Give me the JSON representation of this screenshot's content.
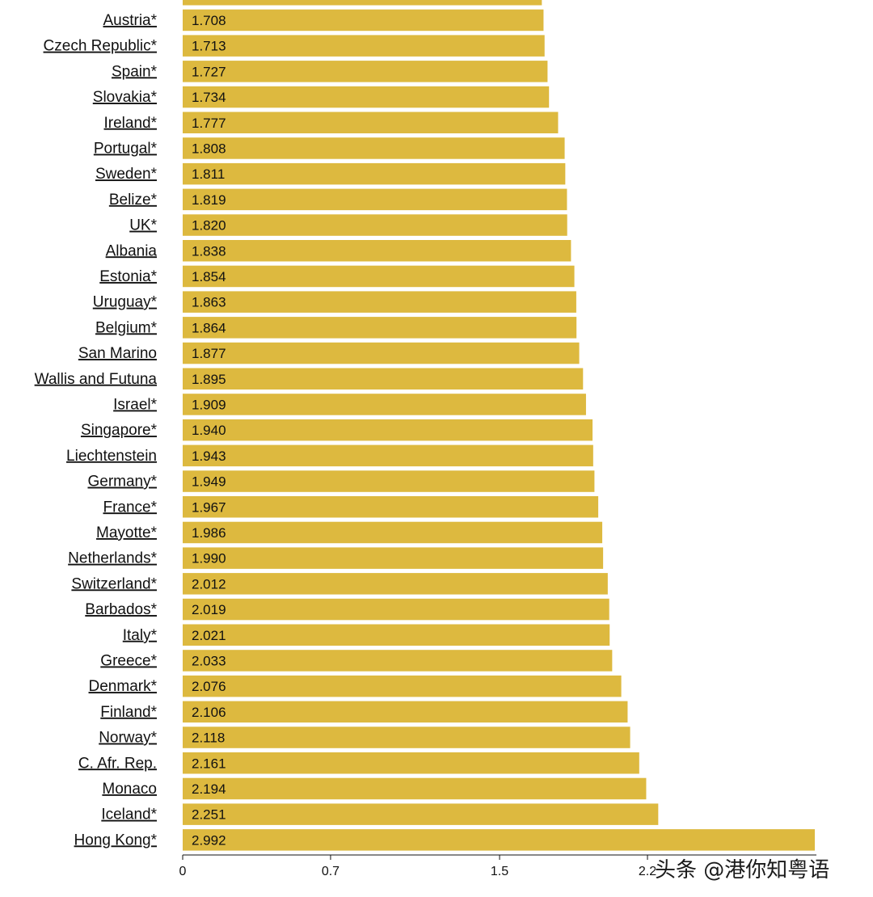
{
  "chart_data": {
    "type": "bar",
    "orientation": "horizontal",
    "bar_color": "#DDB93F",
    "xlim": [
      0,
      2.992
    ],
    "x_ticks": [
      "0",
      "0.7",
      "1.5",
      "2.2"
    ],
    "grid": false,
    "categories": [
      "",
      "Austria*",
      "Czech Republic*",
      "Spain*",
      "Slovakia*",
      "Ireland*",
      "Portugal*",
      "Sweden*",
      "Belize*",
      "UK*",
      "Albania",
      "Estonia*",
      "Uruguay*",
      "Belgium*",
      "San Marino",
      "Wallis and Futuna",
      "Israel*",
      "Singapore*",
      "Liechtenstein",
      "Germany*",
      "France*",
      "Mayotte*",
      "Netherlands*",
      "Switzerland*",
      "Barbados*",
      "Italy*",
      "Greece*",
      "Denmark*",
      "Finland*",
      "Norway*",
      "C. Afr. Rep.",
      "Monaco",
      "Iceland*",
      "Hong Kong*"
    ],
    "values": [
      1.7,
      1.708,
      1.713,
      1.727,
      1.734,
      1.777,
      1.808,
      1.811,
      1.819,
      1.82,
      1.838,
      1.854,
      1.863,
      1.864,
      1.877,
      1.895,
      1.909,
      1.94,
      1.943,
      1.949,
      1.967,
      1.986,
      1.99,
      2.012,
      2.019,
      2.021,
      2.033,
      2.076,
      2.106,
      2.118,
      2.161,
      2.194,
      2.251,
      2.992
    ],
    "value_labels": [
      "",
      "1.708",
      "1.713",
      "1.727",
      "1.734",
      "1.777",
      "1.808",
      "1.811",
      "1.819",
      "1.820",
      "1.838",
      "1.854",
      "1.863",
      "1.864",
      "1.877",
      "1.895",
      "1.909",
      "1.940",
      "1.943",
      "1.949",
      "1.967",
      "1.986",
      "1.990",
      "2.012",
      "2.019",
      "2.021",
      "2.033",
      "2.076",
      "2.106",
      "2.118",
      "2.161",
      "2.194",
      "2.251",
      "2.992"
    ]
  },
  "watermark": "头条 @港你知粤语"
}
